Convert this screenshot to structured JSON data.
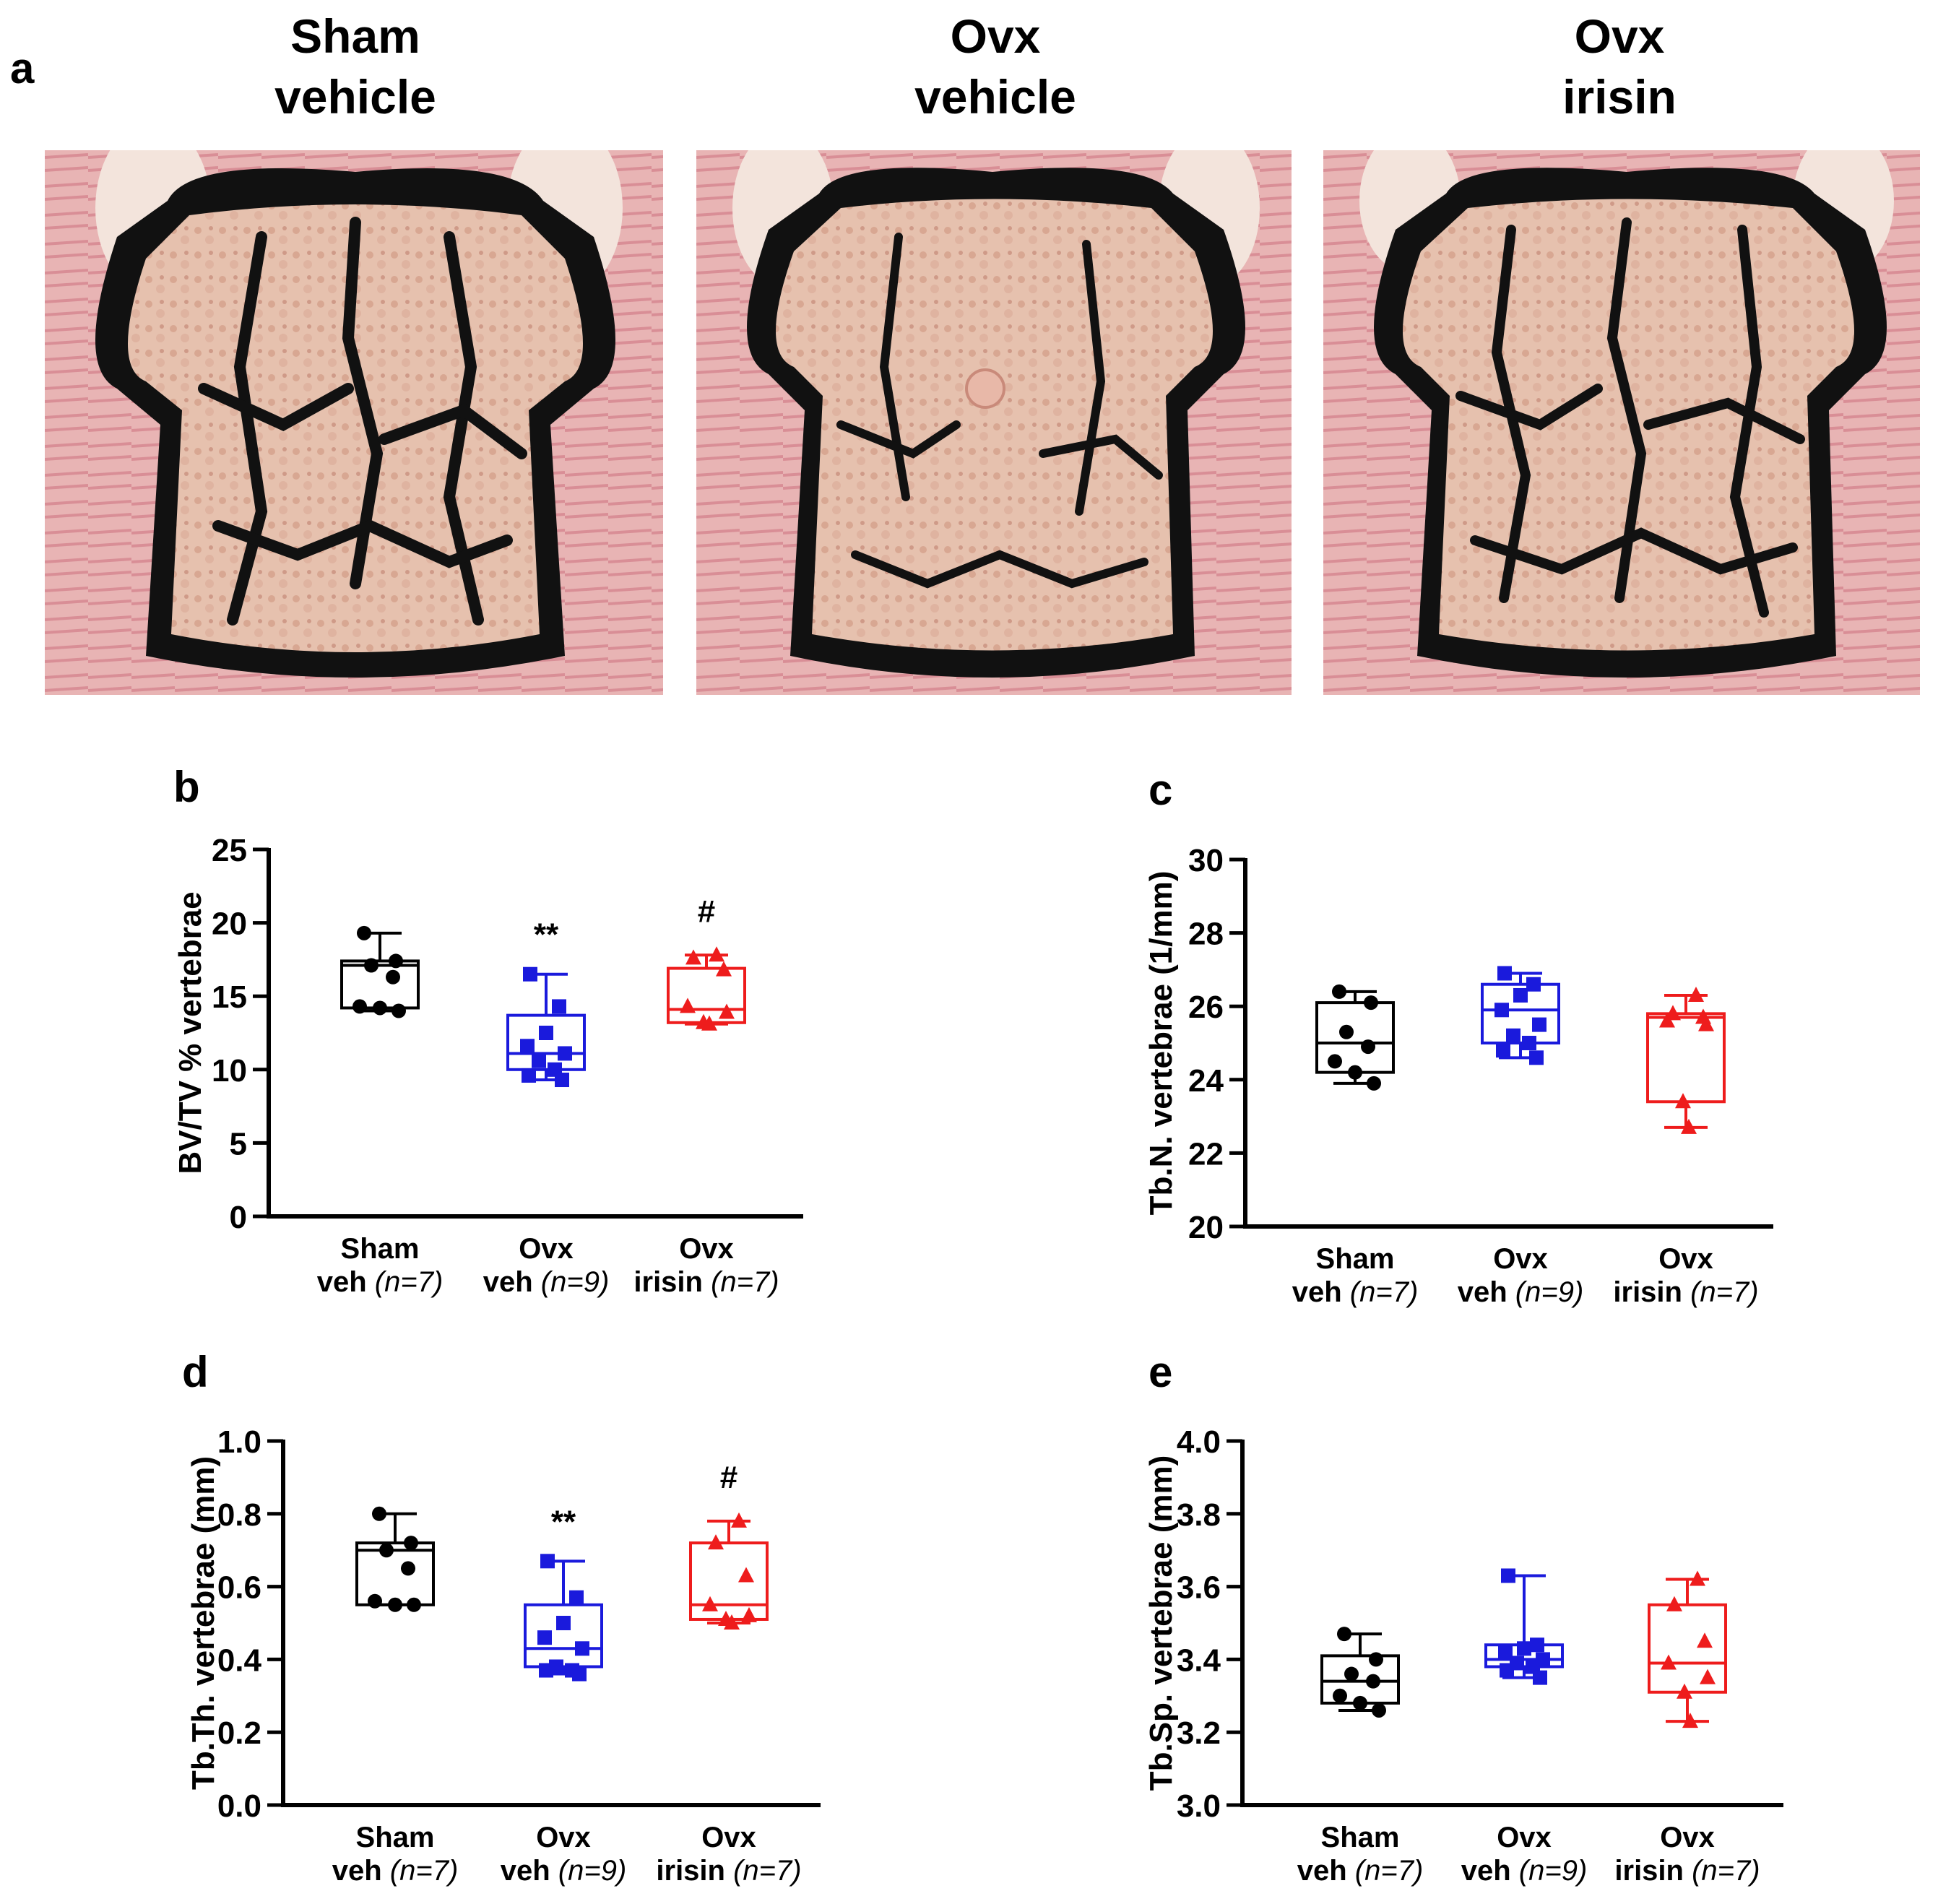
{
  "figure": {
    "panel_a": {
      "letter": "a",
      "images": [
        {
          "line1": "Sham",
          "line2": "vehicle",
          "icon": "vertebra-micrograph-sham-vehicle"
        },
        {
          "line1": "Ovx",
          "line2": "vehicle",
          "icon": "vertebra-micrograph-ovx-vehicle"
        },
        {
          "line1": "Ovx",
          "line2": "irisin",
          "icon": "vertebra-micrograph-ovx-irisin"
        }
      ]
    }
  },
  "colors": {
    "sham": "#000000",
    "ovx_veh": "#1a1adc",
    "ovx_irisin": "#ee1c1c"
  },
  "chart_data": [
    {
      "panel": "b",
      "type": "boxplot",
      "ylabel": "BV/TV % vertebrae",
      "ylim": [
        0,
        25
      ],
      "yticks": [
        0,
        5,
        10,
        15,
        20,
        25
      ],
      "yticklabels": [
        "0",
        "5",
        "10",
        "15",
        "20",
        "25"
      ],
      "groups": [
        {
          "line1": "Sham",
          "veh": "veh",
          "n": "(n=7)",
          "color_key": "sham",
          "marker": "circle",
          "min": 14.0,
          "q1": 14.2,
          "median": 17.1,
          "q3": 17.4,
          "max": 19.3,
          "points": [
            19.3,
            17.4,
            17.1,
            16.3,
            14.3,
            14.2,
            14.0
          ],
          "sig": ""
        },
        {
          "line1": "Ovx",
          "veh": "veh",
          "n": "(n=9)",
          "color_key": "ovx_veh",
          "marker": "square",
          "min": 9.3,
          "q1": 10.0,
          "median": 11.1,
          "q3": 13.7,
          "max": 16.5,
          "points": [
            16.5,
            14.3,
            12.5,
            11.6,
            11.1,
            10.6,
            10.0,
            9.6,
            9.3
          ],
          "sig": "**"
        },
        {
          "line1": "Ovx",
          "veh": "irisin",
          "n": "(n=7)",
          "color_key": "ovx_irisin",
          "marker": "triangle",
          "min": 13.1,
          "q1": 13.2,
          "median": 14.1,
          "q3": 16.9,
          "max": 17.8,
          "points": [
            17.8,
            17.6,
            16.8,
            14.3,
            13.9,
            13.2,
            13.1
          ],
          "sig": "#"
        }
      ]
    },
    {
      "panel": "c",
      "type": "boxplot",
      "ylabel": "Tb.N. vertebrae (1/mm)",
      "ylim": [
        20,
        30
      ],
      "yticks": [
        20,
        22,
        24,
        26,
        28,
        30
      ],
      "yticklabels": [
        "20",
        "22",
        "24",
        "26",
        "28",
        "30"
      ],
      "groups": [
        {
          "line1": "Sham",
          "veh": "veh",
          "n": "(n=7)",
          "color_key": "sham",
          "marker": "circle",
          "min": 23.9,
          "q1": 24.2,
          "median": 25.0,
          "q3": 26.1,
          "max": 26.4,
          "points": [
            26.4,
            26.1,
            25.3,
            24.9,
            24.5,
            24.2,
            23.9
          ],
          "sig": ""
        },
        {
          "line1": "Ovx",
          "veh": "veh",
          "n": "(n=9)",
          "color_key": "ovx_veh",
          "marker": "square",
          "min": 24.6,
          "q1": 25.0,
          "median": 25.9,
          "q3": 26.6,
          "max": 26.9,
          "points": [
            26.9,
            26.6,
            26.3,
            25.9,
            25.5,
            25.2,
            25.0,
            24.8,
            24.6
          ],
          "sig": ""
        },
        {
          "line1": "Ovx",
          "veh": "irisin",
          "n": "(n=7)",
          "color_key": "ovx_irisin",
          "marker": "triangle",
          "min": 22.7,
          "q1": 23.4,
          "median": 25.7,
          "q3": 25.8,
          "max": 26.3,
          "points": [
            26.3,
            25.8,
            25.7,
            25.6,
            25.5,
            23.4,
            22.7
          ],
          "sig": ""
        }
      ]
    },
    {
      "panel": "d",
      "type": "boxplot",
      "ylabel": "Tb.Th. vertebrae (mm)",
      "ylim": [
        0.0,
        1.0
      ],
      "yticks": [
        0.0,
        0.2,
        0.4,
        0.6,
        0.8,
        1.0
      ],
      "yticklabels": [
        "0.0",
        "0.2",
        "0.4",
        "0.6",
        "0.8",
        "1.0"
      ],
      "groups": [
        {
          "line1": "Sham",
          "veh": "veh",
          "n": "(n=7)",
          "color_key": "sham",
          "marker": "circle",
          "min": 0.55,
          "q1": 0.55,
          "median": 0.7,
          "q3": 0.72,
          "max": 0.8,
          "points": [
            0.8,
            0.72,
            0.7,
            0.65,
            0.56,
            0.55,
            0.55
          ],
          "sig": ""
        },
        {
          "line1": "Ovx",
          "veh": "veh",
          "n": "(n=9)",
          "color_key": "ovx_veh",
          "marker": "square",
          "min": 0.36,
          "q1": 0.38,
          "median": 0.43,
          "q3": 0.55,
          "max": 0.67,
          "points": [
            0.67,
            0.57,
            0.5,
            0.46,
            0.43,
            0.38,
            0.37,
            0.37,
            0.36
          ],
          "sig": "**"
        },
        {
          "line1": "Ovx",
          "veh": "irisin",
          "n": "(n=7)",
          "color_key": "ovx_irisin",
          "marker": "triangle",
          "min": 0.5,
          "q1": 0.51,
          "median": 0.55,
          "q3": 0.72,
          "max": 0.78,
          "points": [
            0.78,
            0.72,
            0.63,
            0.55,
            0.52,
            0.51,
            0.5
          ],
          "sig": "#"
        }
      ]
    },
    {
      "panel": "e",
      "type": "boxplot",
      "ylabel": "Tb.Sp. vertebrae (mm)",
      "ylim": [
        3.0,
        4.0
      ],
      "yticks": [
        3.0,
        3.2,
        3.4,
        3.6,
        3.8,
        4.0
      ],
      "yticklabels": [
        "3.0",
        "3.2",
        "3.4",
        "3.6",
        "3.8",
        "4.0"
      ],
      "groups": [
        {
          "line1": "Sham",
          "veh": "veh",
          "n": "(n=7)",
          "color_key": "sham",
          "marker": "circle",
          "min": 3.26,
          "q1": 3.28,
          "median": 3.34,
          "q3": 3.41,
          "max": 3.47,
          "points": [
            3.47,
            3.4,
            3.36,
            3.34,
            3.3,
            3.28,
            3.26
          ],
          "sig": ""
        },
        {
          "line1": "Ovx",
          "veh": "veh",
          "n": "(n=9)",
          "color_key": "ovx_veh",
          "marker": "square",
          "min": 3.35,
          "q1": 3.38,
          "median": 3.4,
          "q3": 3.44,
          "max": 3.63,
          "points": [
            3.63,
            3.44,
            3.43,
            3.42,
            3.4,
            3.39,
            3.38,
            3.37,
            3.35
          ],
          "sig": ""
        },
        {
          "line1": "Ovx",
          "veh": "irisin",
          "n": "(n=7)",
          "color_key": "ovx_irisin",
          "marker": "triangle",
          "min": 3.23,
          "q1": 3.31,
          "median": 3.39,
          "q3": 3.55,
          "max": 3.62,
          "points": [
            3.62,
            3.55,
            3.45,
            3.39,
            3.35,
            3.31,
            3.23
          ],
          "sig": ""
        }
      ]
    }
  ]
}
